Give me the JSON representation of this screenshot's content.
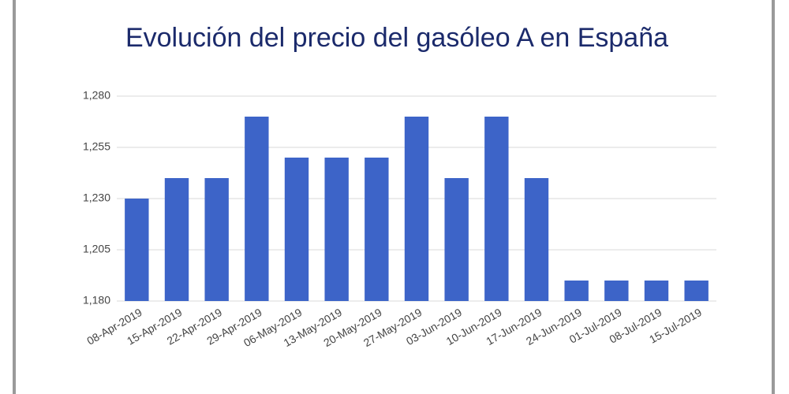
{
  "chart_data": {
    "type": "bar",
    "title": "Evolución del precio del gasóleo A en España",
    "categories": [
      "08-Apr-2019",
      "15-Apr-2019",
      "22-Apr-2019",
      "29-Apr-2019",
      "06-May-2019",
      "13-May-2019",
      "20-May-2019",
      "27-May-2019",
      "03-Jun-2019",
      "10-Jun-2019",
      "17-Jun-2019",
      "24-Jun-2019",
      "01-Jul-2019",
      "08-Jul-2019",
      "15-Jul-2019"
    ],
    "values": [
      1.23,
      1.24,
      1.24,
      1.27,
      1.25,
      1.25,
      1.25,
      1.27,
      1.24,
      1.27,
      1.24,
      1.19,
      1.19,
      1.19,
      1.19
    ],
    "color": "#3d64c8",
    "ylim": [
      1.18,
      1.28
    ],
    "yticks": [
      {
        "value": 1.18,
        "label": "1,180"
      },
      {
        "value": 1.205,
        "label": "1,205"
      },
      {
        "value": 1.23,
        "label": "1,230"
      },
      {
        "value": 1.255,
        "label": "1,255"
      },
      {
        "value": 1.28,
        "label": "1,280"
      }
    ],
    "grid": true
  }
}
